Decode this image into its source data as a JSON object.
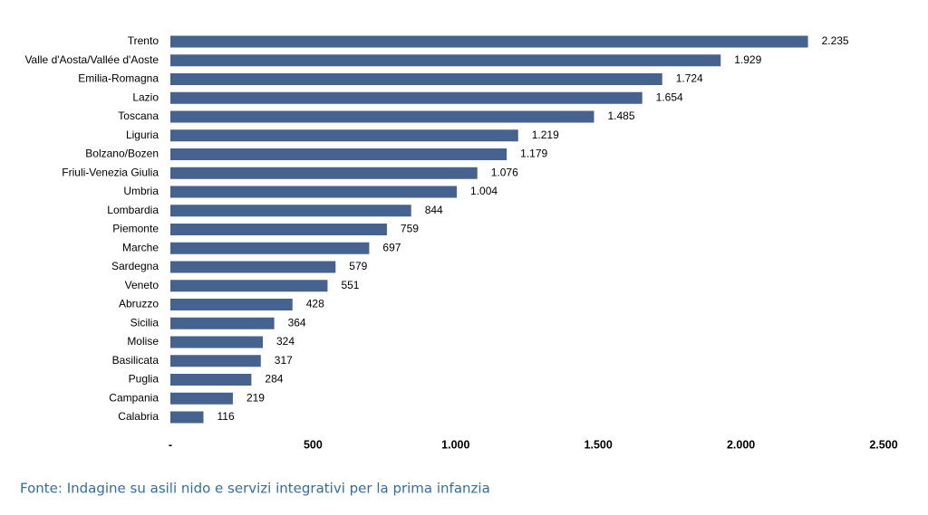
{
  "chart_data": {
    "type": "barh",
    "categories": [
      "Trento",
      "Valle d'Aosta/Vallée d'Aoste",
      "Emilia-Romagna",
      "Lazio",
      "Toscana",
      "Liguria",
      "Bolzano/Bozen",
      "Friuli-Venezia Giulia",
      "Umbria",
      "Lombardia",
      "Piemonte",
      "Marche",
      "Sardegna",
      "Veneto",
      "Abruzzo",
      "Sicilia",
      "Molise",
      "Basilicata",
      "Puglia",
      "Campania",
      "Calabria"
    ],
    "values": [
      2235,
      1929,
      1724,
      1654,
      1485,
      1219,
      1179,
      1076,
      1004,
      844,
      759,
      697,
      579,
      551,
      428,
      364,
      324,
      317,
      284,
      219,
      116
    ],
    "value_labels": [
      "2.235",
      "1.929",
      "1.724",
      "1.654",
      "1.485",
      "1.219",
      "1.179",
      "1.076",
      "1.004",
      "844",
      "759",
      "697",
      "579",
      "551",
      "428",
      "364",
      "324",
      "317",
      "284",
      "219",
      "116"
    ],
    "color": "#46628f",
    "xlim": [
      0,
      2500
    ],
    "xticks": [
      {
        "value": 0,
        "label": "-"
      },
      500,
      {
        "value": 1000,
        "label": "1.000"
      },
      {
        "value": 1500,
        "label": "1.500"
      },
      {
        "value": 2000,
        "label": "2.000"
      },
      {
        "value": 2500,
        "label": "2.500"
      }
    ],
    "source": "Fonte: Indagine su asili nido e servizi integrativi per la prima infanzia"
  }
}
